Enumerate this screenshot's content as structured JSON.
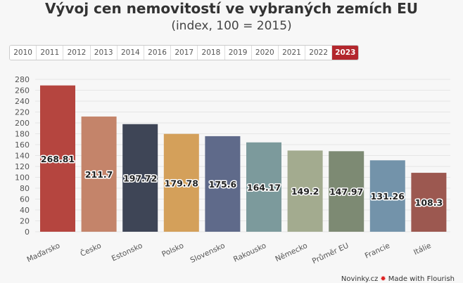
{
  "title": "Vývoj cen nemovitostí ve vybraných zemích EU",
  "subtitle": "(index, 100 = 2015)",
  "years": [
    "2010",
    "2011",
    "2012",
    "2013",
    "2014",
    "2016",
    "2017",
    "2018",
    "2019",
    "2020",
    "2021",
    "2022",
    "2023"
  ],
  "selected_year": "2023",
  "footer": {
    "brand": "Novinky.cz",
    "made_with": "Made with Flourish"
  },
  "chart_data": {
    "type": "bar",
    "categories": [
      "Maďarsko",
      "Česko",
      "Estonsko",
      "Polsko",
      "Slovensko",
      "Rakousko",
      "Německo",
      "Průměr EU",
      "Francie",
      "Itálie"
    ],
    "values": [
      268.81,
      211.7,
      197.72,
      179.78,
      175.6,
      164.17,
      149.2,
      147.97,
      131.26,
      108.3
    ],
    "colors": [
      "#b5453f",
      "#c4846a",
      "#3e4556",
      "#d4a05a",
      "#5f6a8a",
      "#7c9a9c",
      "#a3ab8f",
      "#7d8a73",
      "#7393aa",
      "#9c5850"
    ],
    "ylim": [
      0,
      280
    ],
    "yticks": [
      0,
      20,
      40,
      60,
      80,
      100,
      120,
      140,
      160,
      180,
      200,
      220,
      240,
      260,
      280
    ],
    "grid": true,
    "title": "Vývoj cen nemovitostí ve vybraných zemích EU",
    "xlabel": "",
    "ylabel": ""
  }
}
